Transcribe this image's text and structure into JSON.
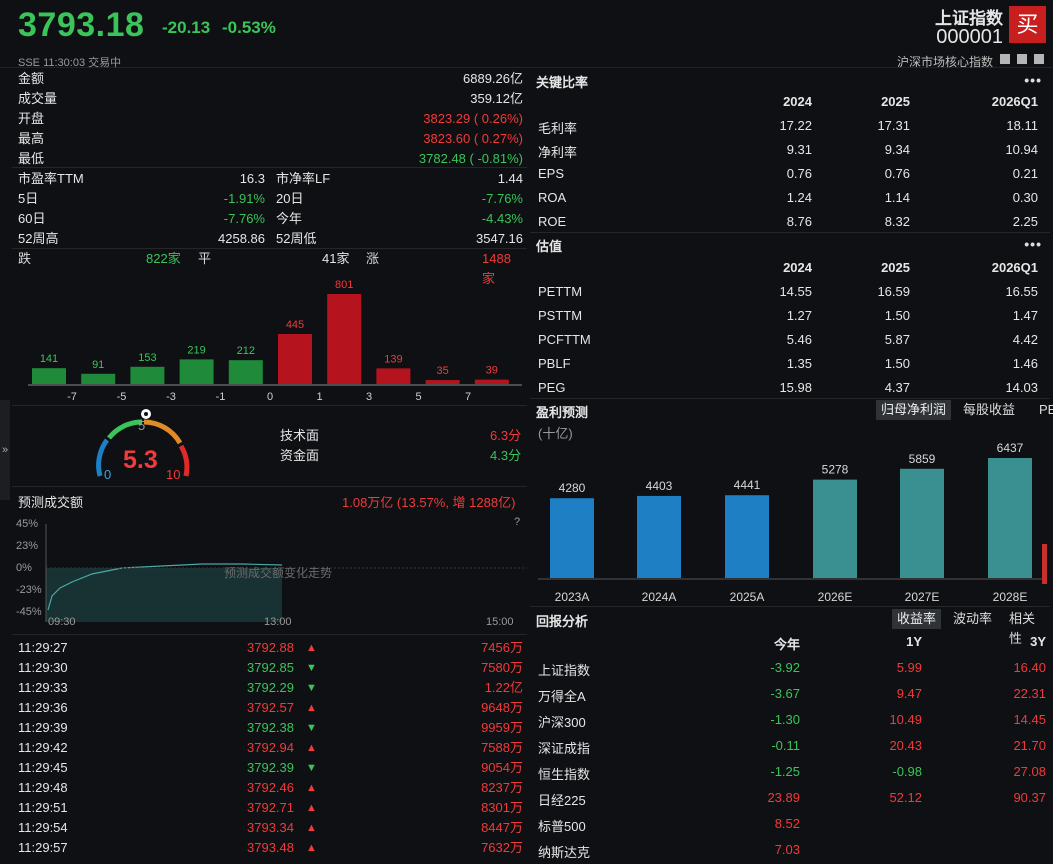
{
  "header": {
    "price": "3793.18",
    "change": "-20.13",
    "change_pct": "-0.53%",
    "exchange_line": "SSE  11:30:03  交易中",
    "index_name": "上证指数",
    "index_code": "000001",
    "buy_label": "买",
    "market_line": "沪深市场核心指数"
  },
  "quote": [
    {
      "label": "金额",
      "value": "6889.26亿",
      "color": "wt"
    },
    {
      "label": "成交量",
      "value": "359.12亿",
      "color": "wt"
    },
    {
      "label": "开盘",
      "value": "3823.29 (  0.26%)",
      "color": "up"
    },
    {
      "label": "最高",
      "value": "3823.60 (  0.27%)",
      "color": "up"
    },
    {
      "label": "最低",
      "value": "3782.48 ( -0.81%)",
      "color": "dn"
    }
  ],
  "stats": [
    {
      "l1": "市盈率TTM",
      "v1": "16.3",
      "c1": "wt",
      "l2": "市净率LF",
      "v2": "1.44",
      "c2": "wt"
    },
    {
      "l1": "5日",
      "v1": "-1.91%",
      "c1": "dn",
      "l2": "20日",
      "v2": "-7.76%",
      "c2": "dn"
    },
    {
      "l1": "60日",
      "v1": "-7.76%",
      "c1": "dn",
      "l2": "今年",
      "v2": "-4.43%",
      "c2": "dn"
    },
    {
      "l1": "52周高",
      "v1": "4258.86",
      "c1": "wt",
      "l2": "52周低",
      "v2": "3547.16",
      "c2": "wt"
    }
  ],
  "breadth": {
    "down_label": "跌",
    "down_count": "822家",
    "flat_label": "平",
    "flat_count": "41家",
    "up_label": "涨",
    "up_count": "1488家"
  },
  "distribution_chart": {
    "type": "bar",
    "values": [
      141,
      91,
      153,
      219,
      212,
      445,
      801,
      139,
      35,
      39
    ],
    "colors": [
      "dn",
      "dn",
      "dn",
      "dn",
      "dn",
      "up",
      "up",
      "up",
      "up",
      "up"
    ],
    "ticks": [
      "-7",
      "-5",
      "-3",
      "-1",
      "0",
      "1",
      "3",
      "5",
      "7"
    ]
  },
  "gauge": {
    "value": "5.3",
    "min": "0",
    "mid": "5",
    "max": "10",
    "tech_label": "技术面",
    "tech_value": "6.3分",
    "fund_label": "资金面",
    "fund_value": "4.3分"
  },
  "forecast": {
    "title": "预测成交额",
    "value": "1.08万亿 (13.57%, 增 1288亿)",
    "help": "?",
    "y_ticks": [
      "45%",
      "23%",
      "0%",
      "-23%",
      "-45%"
    ],
    "x_ticks": [
      "09:30",
      "13:00",
      "15:00"
    ],
    "watermark": "预测成交额变化走势"
  },
  "ticks": [
    {
      "time": "11:29:27",
      "price": "3792.88",
      "dir": "up",
      "vol": "7456万"
    },
    {
      "time": "11:29:30",
      "price": "3792.85",
      "dir": "dn",
      "vol": "7580万"
    },
    {
      "time": "11:29:33",
      "price": "3792.29",
      "dir": "dn",
      "vol": "1.22亿"
    },
    {
      "time": "11:29:36",
      "price": "3792.57",
      "dir": "up",
      "vol": "9648万"
    },
    {
      "time": "11:29:39",
      "price": "3792.38",
      "dir": "dn",
      "vol": "9959万"
    },
    {
      "time": "11:29:42",
      "price": "3792.94",
      "dir": "up",
      "vol": "7588万"
    },
    {
      "time": "11:29:45",
      "price": "3792.39",
      "dir": "dn",
      "vol": "9054万"
    },
    {
      "time": "11:29:48",
      "price": "3792.46",
      "dir": "up",
      "vol": "8237万"
    },
    {
      "time": "11:29:51",
      "price": "3792.71",
      "dir": "up",
      "vol": "8301万"
    },
    {
      "time": "11:29:54",
      "price": "3793.34",
      "dir": "up",
      "vol": "8447万"
    },
    {
      "time": "11:29:57",
      "price": "3793.48",
      "dir": "up",
      "vol": "7632万"
    }
  ],
  "ratios": {
    "title": "关键比率",
    "more": "•••",
    "cols": [
      "2024",
      "2025",
      "2026Q1"
    ],
    "rows": [
      {
        "label": "毛利率",
        "vals": [
          "17.22",
          "17.31",
          "18.11"
        ]
      },
      {
        "label": "净利率",
        "vals": [
          "9.31",
          "9.34",
          "10.94"
        ]
      },
      {
        "label": "EPS",
        "vals": [
          "0.76",
          "0.76",
          "0.21"
        ]
      },
      {
        "label": "ROA",
        "vals": [
          "1.24",
          "1.14",
          "0.30"
        ]
      },
      {
        "label": "ROE",
        "vals": [
          "8.76",
          "8.32",
          "2.25"
        ]
      }
    ]
  },
  "valuation": {
    "title": "估值",
    "more": "•••",
    "cols": [
      "2024",
      "2025",
      "2026Q1"
    ],
    "rows": [
      {
        "label": "PETTM",
        "vals": [
          "14.55",
          "16.59",
          "16.55"
        ]
      },
      {
        "label": "PSTTM",
        "vals": [
          "1.27",
          "1.50",
          "1.47"
        ]
      },
      {
        "label": "PCFTTM",
        "vals": [
          "5.46",
          "5.87",
          "4.42"
        ]
      },
      {
        "label": "PBLF",
        "vals": [
          "1.35",
          "1.50",
          "1.46"
        ]
      },
      {
        "label": "PEG",
        "vals": [
          "15.98",
          "4.37",
          "14.03"
        ]
      }
    ]
  },
  "earnings": {
    "title": "盈利预测",
    "unit": "(十亿)",
    "tabs": [
      "归母净利润",
      "每股收益",
      "PE"
    ]
  },
  "chart_data": {
    "type": "bar",
    "categories": [
      "2023A",
      "2024A",
      "2025A",
      "2026E",
      "2027E",
      "2028E"
    ],
    "values": [
      4280,
      4403,
      4441,
      5278,
      5859,
      6437
    ],
    "colors": [
      "#1f7fc4",
      "#1f7fc4",
      "#1f7fc4",
      "#3a9090",
      "#3a9090",
      "#3a9090"
    ]
  },
  "returns": {
    "title": "回报分析",
    "tabs": [
      "收益率",
      "波动率",
      "相关性"
    ],
    "cols": [
      "今年",
      "1Y",
      "3Y"
    ],
    "rows": [
      {
        "label": "上证指数",
        "vals": [
          "-3.92",
          "5.99",
          "16.40"
        ],
        "cls": [
          "dn",
          "up",
          "up"
        ]
      },
      {
        "label": "万得全A",
        "vals": [
          "-3.67",
          "9.47",
          "22.31"
        ],
        "cls": [
          "dn",
          "up",
          "up"
        ]
      },
      {
        "label": "沪深300",
        "vals": [
          "-1.30",
          "10.49",
          "14.45"
        ],
        "cls": [
          "dn",
          "up",
          "up"
        ]
      },
      {
        "label": "深证成指",
        "vals": [
          "-0.11",
          "20.43",
          "21.70"
        ],
        "cls": [
          "dn",
          "up",
          "up"
        ]
      },
      {
        "label": "恒生指数",
        "vals": [
          "-1.25",
          "-0.98",
          "27.08"
        ],
        "cls": [
          "dn",
          "dn",
          "up"
        ]
      },
      {
        "label": "日经225",
        "vals": [
          "23.89",
          "52.12",
          "90.37"
        ],
        "cls": [
          "up",
          "up",
          "up"
        ]
      },
      {
        "label": "标普500",
        "vals": [
          "8.52",
          "",
          ""
        ],
        "cls": [
          "up",
          "up",
          "up"
        ]
      },
      {
        "label": "纳斯达克",
        "vals": [
          "7.03",
          "",
          ""
        ],
        "cls": [
          "up",
          "up",
          "up"
        ]
      }
    ]
  }
}
